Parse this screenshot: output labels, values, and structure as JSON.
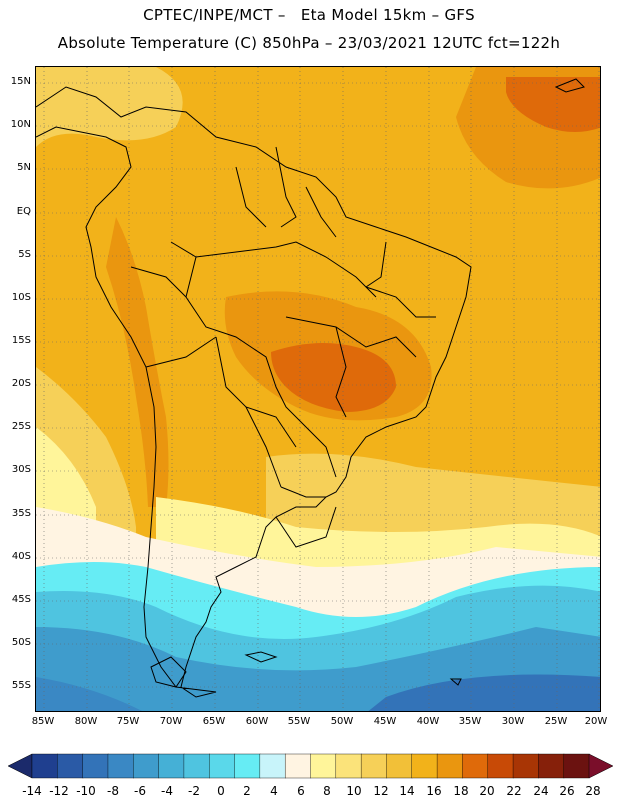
{
  "title_line1": "CPTEC/INPE/MCT –   Eta Model 15km – GFS",
  "title_line2": "Absolute Temperature (C) 850hPa – 23/03/2021 12UTC fct=122h",
  "lat_labels": [
    "15N",
    "10N",
    "5N",
    "EQ",
    "5S",
    "10S",
    "15S",
    "20S",
    "25S",
    "30S",
    "35S",
    "40S",
    "45S",
    "50S",
    "55S"
  ],
  "lon_labels": [
    "85W",
    "80W",
    "75W",
    "70W",
    "65W",
    "60W",
    "55W",
    "50W",
    "45W",
    "40W",
    "35W",
    "30W",
    "25W",
    "20W"
  ],
  "colorbar": {
    "labels": [
      "-14",
      "-12",
      "-10",
      "-8",
      "-6",
      "-4",
      "-2",
      "0",
      "2",
      "4",
      "6",
      "8",
      "10",
      "12",
      "14",
      "16",
      "18",
      "20",
      "22",
      "24",
      "26",
      "28"
    ],
    "colors": [
      "#1f3f8f",
      "#2a5aa6",
      "#3373b8",
      "#3a88c4",
      "#3f9ccc",
      "#45b0d6",
      "#4fc4e0",
      "#5ad8ea",
      "#66ecf4",
      "#c8f4fa",
      "#fff4e2",
      "#fff59a",
      "#fbe37a",
      "#f6d058",
      "#f2c038",
      "#f2b21a",
      "#ea960f",
      "#df6a0a",
      "#c84a06",
      "#a83505",
      "#86200a",
      "#6b1210"
    ]
  }
}
